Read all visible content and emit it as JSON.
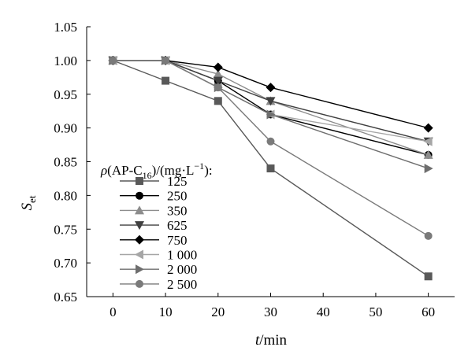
{
  "chart_data": {
    "type": "line",
    "title": "",
    "xlabel": {
      "italic": "t",
      "rest": "/min"
    },
    "ylabel": {
      "main": "S",
      "sub": "et"
    },
    "x": [
      0,
      10,
      20,
      30,
      60
    ],
    "xlim": [
      -5,
      65
    ],
    "ylim": [
      0.65,
      1.05
    ],
    "xticks": [
      "0",
      "10",
      "20",
      "30",
      "40",
      "50",
      "60"
    ],
    "yticks": [
      "0.65",
      "0.70",
      "0.75",
      "0.80",
      "0.85",
      "0.90",
      "0.95",
      "1.00",
      "1.05"
    ],
    "grid": false,
    "legend": {
      "title_parts": [
        "ρ",
        "(AP-C",
        "16",
        ")/(mg·L",
        "−1",
        "):"
      ],
      "placement": "left-middle"
    },
    "series": [
      {
        "name": "125",
        "marker": "square",
        "color": "#595959",
        "values": [
          1.0,
          0.97,
          0.94,
          0.84,
          0.68
        ]
      },
      {
        "name": "250",
        "marker": "circle",
        "color": "#000000",
        "values": [
          1.0,
          1.0,
          0.97,
          0.92,
          0.86
        ]
      },
      {
        "name": "350",
        "marker": "triangle-up",
        "color": "#8c8c8c",
        "values": [
          1.0,
          1.0,
          0.98,
          0.94,
          0.86
        ]
      },
      {
        "name": "625",
        "marker": "triangle-down",
        "color": "#404040",
        "values": [
          1.0,
          1.0,
          0.97,
          0.94,
          0.88
        ]
      },
      {
        "name": "750",
        "marker": "diamond",
        "color": "#000000",
        "values": [
          1.0,
          1.0,
          0.99,
          0.96,
          0.9
        ]
      },
      {
        "name": "1 000",
        "marker": "triangle-left",
        "color": "#a6a6a6",
        "values": [
          1.0,
          1.0,
          0.96,
          0.92,
          0.88
        ]
      },
      {
        "name": "2 000",
        "marker": "triangle-right",
        "color": "#6e6e6e",
        "values": [
          1.0,
          1.0,
          0.96,
          0.92,
          0.84
        ]
      },
      {
        "name": "2 500",
        "marker": "circle",
        "color": "#7a7a7a",
        "values": [
          1.0,
          1.0,
          0.96,
          0.88,
          0.74
        ]
      }
    ]
  }
}
